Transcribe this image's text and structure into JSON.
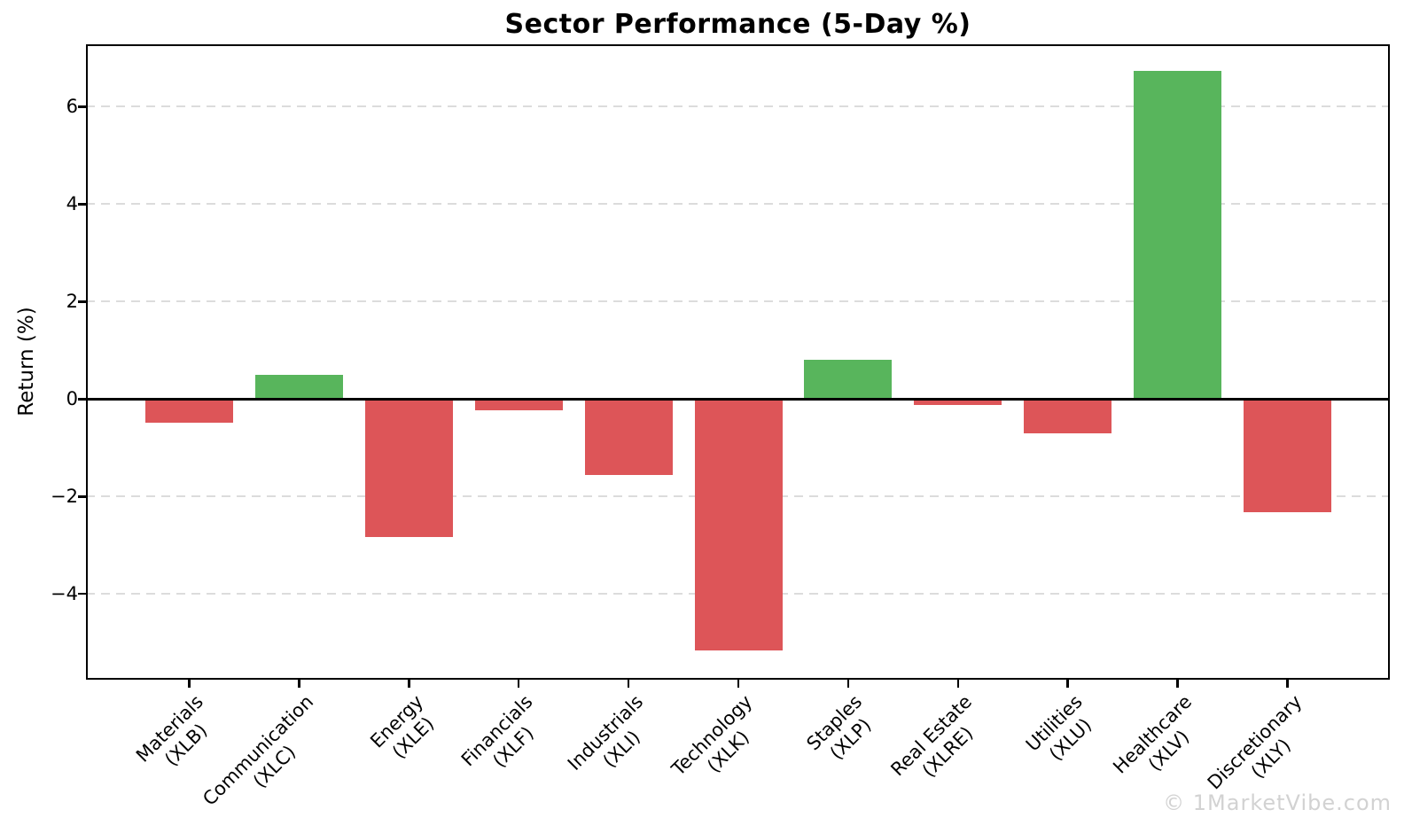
{
  "watermark": "© 1MarketVibe.com",
  "chart_data": {
    "type": "bar",
    "title": "Sector Performance (5-Day %)",
    "xlabel": "",
    "ylabel": "Return (%)",
    "categories": [
      {
        "sector": "Materials",
        "ticker": "(XLB)"
      },
      {
        "sector": "Communication",
        "ticker": "(XLC)"
      },
      {
        "sector": "Energy",
        "ticker": "(XLE)"
      },
      {
        "sector": "Financials",
        "ticker": "(XLF)"
      },
      {
        "sector": "Industrials",
        "ticker": "(XLI)"
      },
      {
        "sector": "Technology",
        "ticker": "(XLK)"
      },
      {
        "sector": "Staples",
        "ticker": "(XLP)"
      },
      {
        "sector": "Real Estate",
        "ticker": "(XLRE)"
      },
      {
        "sector": "Utilities",
        "ticker": "(XLU)"
      },
      {
        "sector": "Healthcare",
        "ticker": "(XLV)"
      },
      {
        "sector": "Discretionary",
        "ticker": "(XLY)"
      }
    ],
    "values": [
      -0.49,
      0.49,
      -2.83,
      -0.24,
      -1.56,
      -5.16,
      0.8,
      -0.13,
      -0.71,
      6.73,
      -2.33
    ],
    "yticks": [
      6,
      4,
      2,
      0,
      -2,
      -4
    ],
    "ylim": [
      -5.76,
      7.28
    ],
    "grid": {
      "orientation": "horizontal",
      "style": "dashed",
      "color": "#dcdcdc",
      "zero_line": "solid-black"
    },
    "legend": "none",
    "colors": {
      "positive": "#58b55c",
      "negative": "#dd5558",
      "axis": "#000000",
      "watermark": "#d2d2d2"
    }
  }
}
